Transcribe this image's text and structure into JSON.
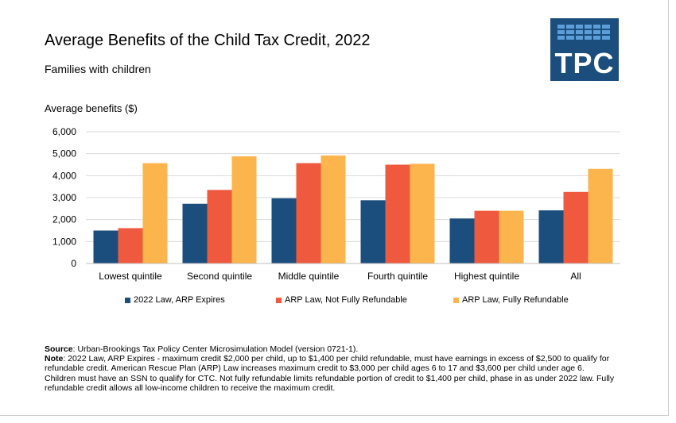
{
  "chart_data": {
    "type": "bar",
    "title": "Average Benefits of the Child Tax Credit, 2022",
    "subtitle": "Families with children",
    "ylabel": "Average benefits ($)",
    "xlabel": "",
    "ylim": [
      0,
      6000
    ],
    "yticks": [
      "0",
      "1,000",
      "2,000",
      "3,000",
      "4,000",
      "5,000",
      "6,000"
    ],
    "categories": [
      "Lowest quintile",
      "Second quintile",
      "Middle quintile",
      "Fourth quintile",
      "Highest quintile",
      "All"
    ],
    "series": [
      {
        "name": "2022 Law, ARP Expires",
        "color": "#1b4e7d",
        "values": [
          1500,
          2720,
          2970,
          2880,
          2050,
          2420
        ]
      },
      {
        "name": "ARP Law, Not Fully Refundable",
        "color": "#ef5a3e",
        "values": [
          1610,
          3350,
          4570,
          4500,
          2400,
          3260
        ]
      },
      {
        "name": "ARP Law, Fully Refundable",
        "color": "#fcb54c",
        "values": [
          4570,
          4880,
          4920,
          4540,
          2400,
          4310
        ]
      }
    ],
    "grid": true,
    "legend": "bottom"
  },
  "logo": {
    "text": "TPC"
  },
  "footnote": {
    "source_label": "Source",
    "source_text": ": Urban-Brookings Tax Policy Center Microsimulation Model (version 0721-1).",
    "note_label": "Note",
    "note_text": ": 2022 Law, ARP Expires - maximum credit $2,000 per child, up to $1,400 per child refundable, must have earnings in excess of $2,500 to qualify for refundable credit. American Rescue Plan (ARP) Law increases maximum credit to $3,000 per child ages 6 to 17 and $3,600 per child under age 6. Children must have an SSN to qualify for CTC. Not fully refundable limits refundable portion of credit to $1,400 per child, phase in as under 2022 law. Fully refundable credit allows all low-income children to receive the maximum credit."
  }
}
